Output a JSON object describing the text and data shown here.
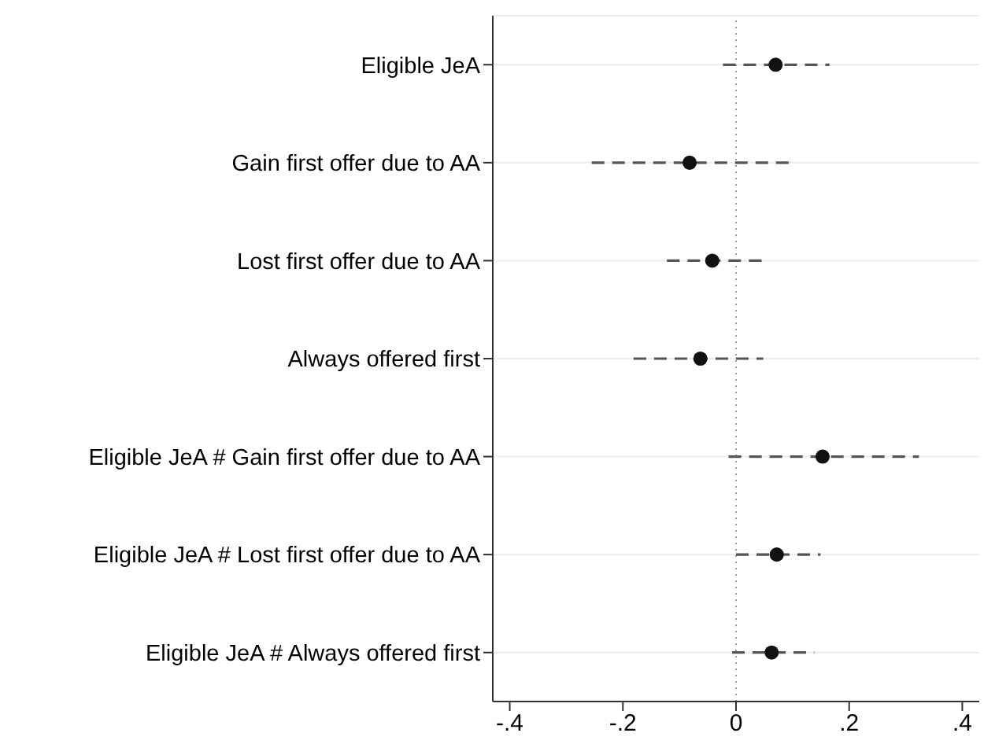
{
  "chart_data": {
    "type": "scatter",
    "orientation": "horizontal",
    "categories": [
      "Eligible JeA",
      "Gain first offer due to AA",
      "Lost first offer due to AA",
      "Always offered first",
      "Eligible JeA # Gain first offer due to AA",
      "Eligible JeA # Lost first offer due to AA",
      "Eligible JeA # Always offered first"
    ],
    "values": [
      0.07,
      -0.082,
      -0.042,
      -0.063,
      0.153,
      0.072,
      0.063
    ],
    "errors": [
      [
        -0.023,
        0.165
      ],
      [
        -0.255,
        0.095
      ],
      [
        -0.122,
        0.045
      ],
      [
        -0.181,
        0.048
      ],
      [
        -0.013,
        0.323
      ],
      [
        0.0,
        0.149
      ],
      [
        -0.007,
        0.138
      ]
    ],
    "color": "#111111",
    "marker": "circle",
    "line_style": "dashed",
    "xlim": [
      -0.43,
      0.43
    ],
    "xticks": [
      {
        "value": -0.4,
        "label": "-.4"
      },
      {
        "value": -0.2,
        "label": "-.2"
      },
      0,
      {
        "value": 0.2,
        "label": ".2"
      },
      {
        "value": 0.4,
        "label": ".4"
      }
    ],
    "grid": "y",
    "ref_lines": [
      {
        "axis": "x",
        "value": 0,
        "color": "#999999",
        "line_style": "dotted"
      }
    ]
  }
}
